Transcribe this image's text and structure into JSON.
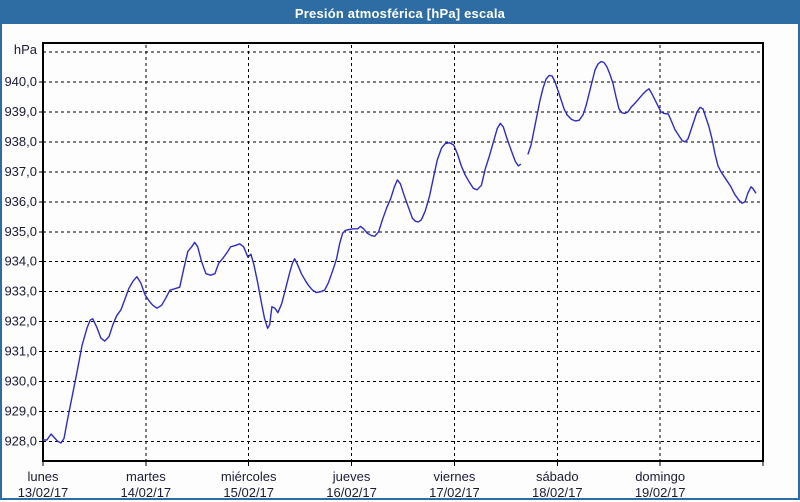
{
  "window": {
    "title": "Presión atmosférica [hPa] escala",
    "titlebar_color": "#2e6da3",
    "border_color": "#2e6da3",
    "background_color": "#fdfdfd"
  },
  "chart_data": {
    "type": "line",
    "title": "Presión atmosférica [hPa] escala",
    "ylabel": "hPa",
    "xlabel": "",
    "legend": "none",
    "grid": "dashed",
    "line_color": "#2d2dc6",
    "ylim": [
      927.35,
      941.3
    ],
    "xlim_hours": [
      0,
      168
    ],
    "y_gridlines": [
      941,
      940,
      939,
      938,
      937,
      936,
      935,
      934,
      933,
      932,
      931,
      930,
      929,
      928
    ],
    "y_ticks": [
      {
        "value": 940,
        "label": "940,0"
      },
      {
        "value": 939,
        "label": "939,0"
      },
      {
        "value": 938,
        "label": "938,0"
      },
      {
        "value": 937,
        "label": "937,0"
      },
      {
        "value": 936,
        "label": "936,0"
      },
      {
        "value": 935,
        "label": "935,0"
      },
      {
        "value": 934,
        "label": "934,0"
      },
      {
        "value": 933,
        "label": "933,0"
      },
      {
        "value": 932,
        "label": "932,0"
      },
      {
        "value": 931,
        "label": "931,0"
      },
      {
        "value": 930,
        "label": "930,0"
      },
      {
        "value": 929,
        "label": "929,0"
      },
      {
        "value": 928,
        "label": "928,0"
      }
    ],
    "x_days": [
      {
        "name": "lunes",
        "date": "13/02/17"
      },
      {
        "name": "martes",
        "date": "14/02/17"
      },
      {
        "name": "miércoles",
        "date": "15/02/17"
      },
      {
        "name": "jueves",
        "date": "16/02/17"
      },
      {
        "name": "viernes",
        "date": "17/02/17"
      },
      {
        "name": "sábado",
        "date": "18/02/17"
      },
      {
        "name": "domingo",
        "date": "19/02/17"
      }
    ],
    "series": [
      {
        "name": "Presión atmosférica",
        "unit": "hPa",
        "x_unit": "hours_since_monday_00",
        "segments": [
          [
            [
              0,
              928.05
            ],
            [
              0.9,
              928.05
            ],
            [
              1.9,
              928.25
            ],
            [
              2.8,
              928.1
            ],
            [
              3.5,
              928.0
            ],
            [
              4.2,
              927.95
            ],
            [
              4.9,
              928.1
            ],
            [
              5.8,
              928.8
            ],
            [
              6.8,
              929.5
            ],
            [
              7.9,
              930.3
            ],
            [
              9.1,
              931.2
            ],
            [
              10.3,
              931.8
            ],
            [
              11,
              932.05
            ],
            [
              11.6,
              932.1
            ],
            [
              12.6,
              931.8
            ],
            [
              13.5,
              931.45
            ],
            [
              14.4,
              931.35
            ],
            [
              15.4,
              931.5
            ],
            [
              16.3,
              931.9
            ],
            [
              17.2,
              932.2
            ],
            [
              18.2,
              932.4
            ],
            [
              19.1,
              932.75
            ],
            [
              20,
              933.1
            ],
            [
              21,
              933.35
            ],
            [
              21.9,
              933.5
            ],
            [
              22.8,
              933.3
            ],
            [
              23.8,
              932.9
            ],
            [
              24.7,
              932.7
            ],
            [
              25.6,
              932.55
            ],
            [
              26.6,
              932.45
            ],
            [
              27.7,
              932.55
            ],
            [
              28.7,
              932.8
            ],
            [
              29.6,
              933.05
            ],
            [
              30.8,
              933.1
            ],
            [
              31.9,
              933.15
            ],
            [
              32.9,
              933.8
            ],
            [
              33.8,
              934.35
            ],
            [
              34.7,
              934.5
            ],
            [
              35.4,
              934.65
            ],
            [
              36.1,
              934.5
            ],
            [
              37,
              934.0
            ],
            [
              38,
              933.6
            ],
            [
              39.1,
              933.55
            ],
            [
              40.1,
              933.6
            ],
            [
              41,
              933.95
            ],
            [
              41.9,
              934.1
            ],
            [
              42.9,
              934.3
            ],
            [
              43.8,
              934.5
            ],
            [
              45,
              934.55
            ],
            [
              45.9,
              934.6
            ],
            [
              46.8,
              934.5
            ],
            [
              47.8,
              934.15
            ],
            [
              48.5,
              934.25
            ],
            [
              49.2,
              933.9
            ],
            [
              50.1,
              933.3
            ],
            [
              51,
              932.6
            ],
            [
              51.7,
              932.1
            ],
            [
              52.4,
              931.78
            ],
            [
              52.9,
              931.9
            ],
            [
              53.4,
              932.5
            ],
            [
              54.1,
              932.45
            ],
            [
              54.8,
              932.3
            ],
            [
              55.7,
              932.6
            ],
            [
              56.6,
              933.1
            ],
            [
              57.5,
              933.6
            ],
            [
              58.2,
              933.95
            ],
            [
              58.7,
              934.1
            ],
            [
              59.4,
              933.9
            ],
            [
              60.3,
              933.6
            ],
            [
              61.3,
              933.35
            ],
            [
              62,
              933.2
            ],
            [
              62.9,
              933.05
            ],
            [
              63.8,
              932.97
            ],
            [
              64.8,
              933.0
            ],
            [
              65.7,
              933.05
            ],
            [
              66.6,
              933.3
            ],
            [
              67.6,
              933.7
            ],
            [
              68.5,
              934.1
            ],
            [
              69.2,
              934.6
            ],
            [
              69.9,
              934.95
            ],
            [
              70.6,
              935.05
            ],
            [
              71.5,
              935.08
            ],
            [
              72.5,
              935.1
            ],
            [
              73.4,
              935.1
            ],
            [
              74.1,
              935.18
            ],
            [
              74.8,
              935.1
            ],
            [
              75.7,
              934.95
            ],
            [
              76.7,
              934.87
            ],
            [
              77.4,
              934.85
            ],
            [
              78.3,
              935.0
            ],
            [
              79.2,
              935.4
            ],
            [
              80.2,
              935.8
            ],
            [
              81.1,
              936.1
            ],
            [
              82,
              936.5
            ],
            [
              82.7,
              936.73
            ],
            [
              83.4,
              936.6
            ],
            [
              84.3,
              936.2
            ],
            [
              85.3,
              935.8
            ],
            [
              86.2,
              935.45
            ],
            [
              86.9,
              935.35
            ],
            [
              87.6,
              935.33
            ],
            [
              88.3,
              935.4
            ],
            [
              89.2,
              935.7
            ],
            [
              90.2,
              936.2
            ],
            [
              91.1,
              936.8
            ],
            [
              92,
              937.4
            ],
            [
              93,
              937.8
            ],
            [
              93.9,
              937.95
            ],
            [
              94.8,
              937.97
            ],
            [
              95.8,
              937.9
            ],
            [
              96.7,
              937.6
            ],
            [
              97.6,
              937.2
            ],
            [
              98.5,
              936.9
            ],
            [
              99.5,
              936.65
            ],
            [
              100.4,
              936.45
            ],
            [
              101.3,
              936.4
            ],
            [
              102.3,
              936.55
            ],
            [
              103.2,
              937.1
            ],
            [
              104.1,
              937.5
            ],
            [
              105.1,
              938.0
            ],
            [
              106,
              938.45
            ],
            [
              106.7,
              938.62
            ],
            [
              107.4,
              938.5
            ],
            [
              108.3,
              938.1
            ],
            [
              109.3,
              937.7
            ],
            [
              110.2,
              937.35
            ],
            [
              110.9,
              937.2
            ],
            [
              111.4,
              937.25
            ]
          ],
          [
            [
              113.2,
              937.6
            ],
            [
              113.9,
              937.9
            ],
            [
              114.6,
              938.4
            ],
            [
              115.3,
              938.9
            ],
            [
              116,
              939.4
            ],
            [
              116.7,
              939.8
            ],
            [
              117.4,
              940.1
            ],
            [
              118.1,
              940.22
            ],
            [
              118.8,
              940.2
            ],
            [
              119.5,
              940.0
            ],
            [
              120.2,
              939.7
            ],
            [
              120.9,
              939.4
            ],
            [
              121.6,
              939.1
            ],
            [
              122.3,
              938.9
            ],
            [
              123.3,
              938.75
            ],
            [
              124.2,
              938.7
            ],
            [
              125.1,
              938.72
            ],
            [
              126,
              938.9
            ],
            [
              126.7,
              939.2
            ],
            [
              127.4,
              939.6
            ],
            [
              128.1,
              940.0
            ],
            [
              128.8,
              940.4
            ],
            [
              129.5,
              940.6
            ],
            [
              130.2,
              940.68
            ],
            [
              130.9,
              940.65
            ],
            [
              131.6,
              940.5
            ],
            [
              132.3,
              940.25
            ],
            [
              133,
              939.95
            ],
            [
              133.7,
              939.5
            ],
            [
              134.4,
              939.1
            ],
            [
              135.1,
              938.97
            ],
            [
              135.8,
              938.95
            ],
            [
              136.5,
              939.0
            ],
            [
              137.2,
              939.15
            ],
            [
              138.2,
              939.3
            ],
            [
              139.1,
              939.45
            ],
            [
              140,
              939.6
            ],
            [
              140.7,
              939.7
            ],
            [
              141.4,
              939.77
            ],
            [
              142.1,
              939.6
            ],
            [
              142.8,
              939.4
            ],
            [
              143.5,
              939.2
            ],
            [
              144.2,
              939.0
            ],
            [
              144.9,
              938.95
            ],
            [
              145.9,
              938.93
            ],
            [
              146.6,
              938.7
            ],
            [
              147.5,
              938.4
            ],
            [
              148.4,
              938.2
            ],
            [
              149.1,
              938.05
            ],
            [
              149.8,
              938.0
            ],
            [
              150.5,
              938.1
            ],
            [
              151.2,
              938.4
            ],
            [
              151.9,
              938.7
            ],
            [
              152.6,
              939.0
            ],
            [
              153.3,
              939.15
            ],
            [
              154,
              939.1
            ],
            [
              154.7,
              938.8
            ],
            [
              155.4,
              938.5
            ],
            [
              156.1,
              938.1
            ],
            [
              156.8,
              937.6
            ],
            [
              157.5,
              937.2
            ],
            [
              158.2,
              937.0
            ],
            [
              158.9,
              936.85
            ],
            [
              159.6,
              936.7
            ],
            [
              160.5,
              936.5
            ],
            [
              161.4,
              936.25
            ],
            [
              162.4,
              936.05
            ],
            [
              163.1,
              935.95
            ],
            [
              163.8,
              936.0
            ],
            [
              164.5,
              936.3
            ],
            [
              165.2,
              936.5
            ],
            [
              165.6,
              936.45
            ],
            [
              166.3,
              936.3
            ]
          ]
        ]
      }
    ]
  }
}
